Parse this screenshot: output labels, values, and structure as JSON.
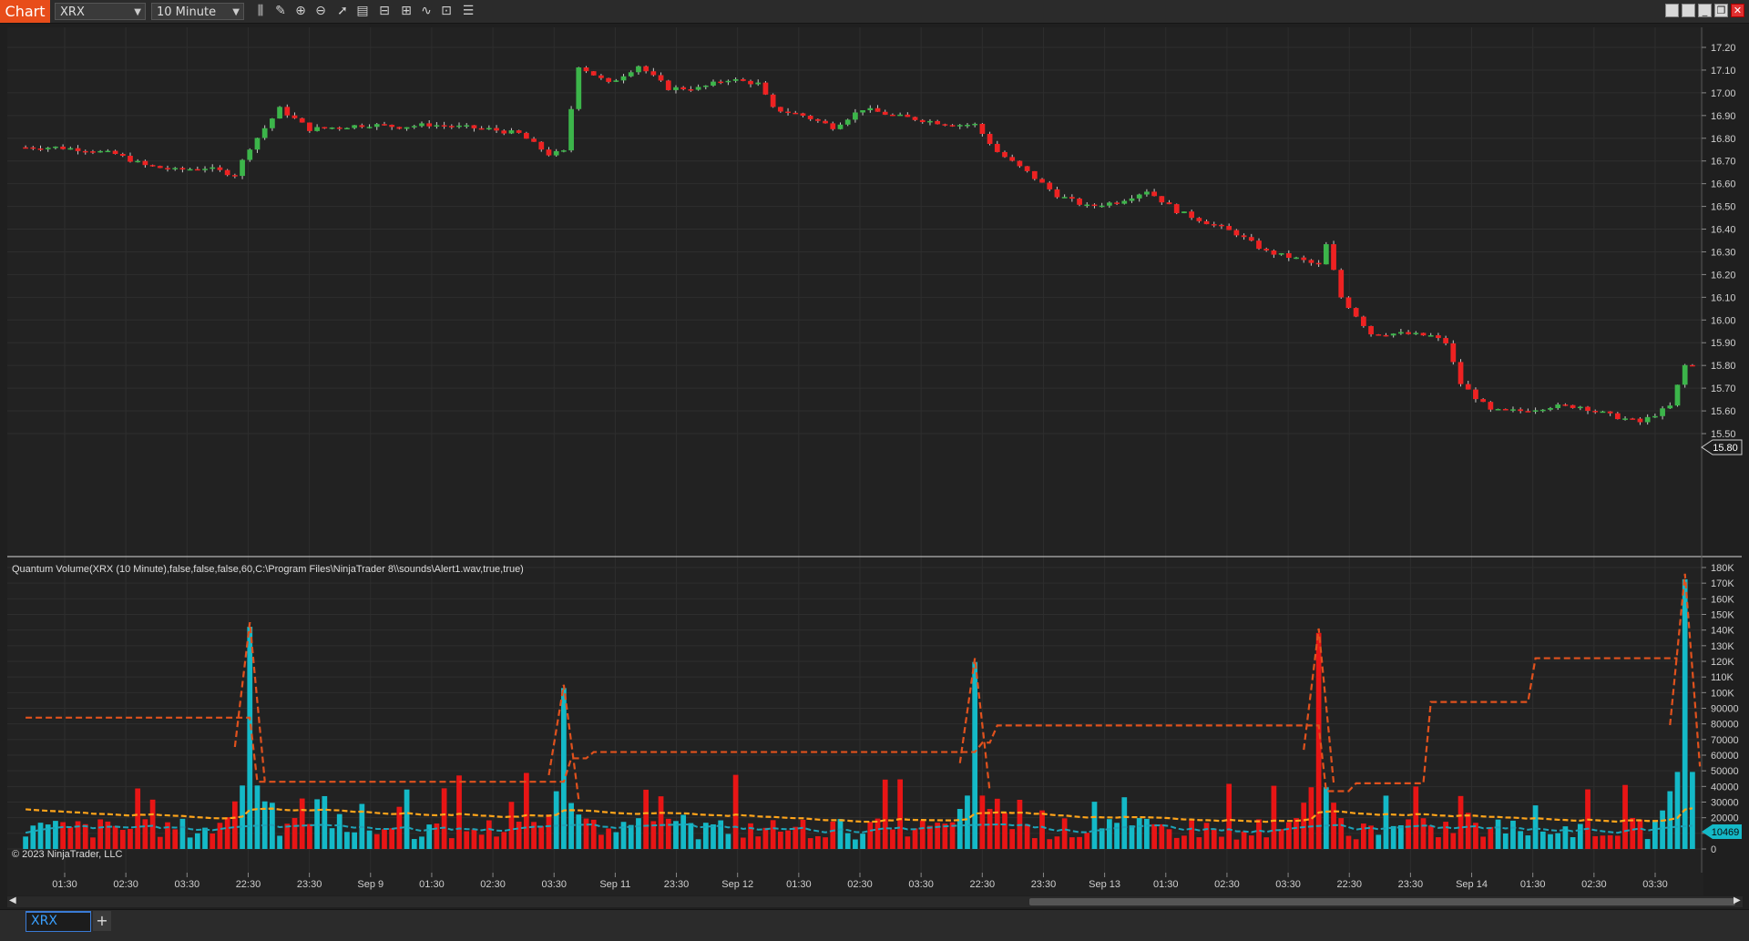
{
  "toolbar": {
    "chart_label": "Chart",
    "instrument": "XRX",
    "interval": "10 Minute"
  },
  "price_axis": {
    "ticks": [
      "17.20",
      "17.10",
      "17.00",
      "16.90",
      "16.80",
      "16.70",
      "16.60",
      "16.50",
      "16.40",
      "16.30",
      "16.20",
      "16.10",
      "16.00",
      "15.90",
      "15.80",
      "15.70",
      "15.60",
      "15.50"
    ],
    "last_price": "15.80"
  },
  "indicator": {
    "title": "Quantum Volume(XRX (10 Minute),false,false,false,60,C:\\Program Files\\NinjaTrader 8\\\\sounds\\Alert1.wav,true,true)",
    "ticks": [
      "180K",
      "170K",
      "160K",
      "150K",
      "140K",
      "130K",
      "120K",
      "110K",
      "100K",
      "90000",
      "80000",
      "70000",
      "60000",
      "50000",
      "40000",
      "30000",
      "20000",
      "10000",
      "0"
    ],
    "last_volume": "10469"
  },
  "time_axis": {
    "labels": [
      "01:30",
      "02:30",
      "03:30",
      "22:30",
      "23:30",
      "Sep 9",
      "01:30",
      "02:30",
      "03:30",
      "Sep 11",
      "23:30",
      "Sep 12",
      "01:30",
      "02:30",
      "03:30",
      "22:30",
      "23:30",
      "Sep 13",
      "01:30",
      "02:30",
      "03:30",
      "22:30",
      "23:30",
      "Sep 14",
      "01:30",
      "02:30",
      "03:30"
    ]
  },
  "copyright": "© 2023 NinjaTrader, LLC",
  "tabs": {
    "active": "XRX",
    "add": "+"
  },
  "colors": {
    "up": "#3cb54a",
    "down": "#ee2222",
    "volume_up": "#14b9c7",
    "volume_down": "#e81515",
    "dash_high": "#e0511d",
    "dash_avg": "#ffa41a",
    "dash_low": "#1ea3b8"
  },
  "chart_data": {
    "type": "candlestick",
    "x": [
      "01:30",
      "02:30",
      "03:30",
      "22:30",
      "23:30",
      "Sep 9",
      "01:30",
      "02:30",
      "03:30",
      "Sep 11",
      "23:30",
      "Sep 12",
      "01:30",
      "02:30",
      "03:30",
      "22:30",
      "23:30",
      "Sep 13",
      "01:30",
      "02:30",
      "03:30",
      "22:30",
      "23:30",
      "Sep 14",
      "01:30",
      "02:30",
      "03:30"
    ],
    "close_path": [
      [
        0,
        16.76
      ],
      [
        4,
        16.76
      ],
      [
        8,
        16.75
      ],
      [
        12,
        16.73
      ],
      [
        16,
        16.68
      ],
      [
        20,
        16.66
      ],
      [
        24,
        16.67
      ],
      [
        28,
        16.64
      ],
      [
        30,
        16.76
      ],
      [
        34,
        16.93
      ],
      [
        38,
        16.84
      ],
      [
        42,
        16.85
      ],
      [
        46,
        16.86
      ],
      [
        50,
        16.85
      ],
      [
        54,
        16.86
      ],
      [
        58,
        16.85
      ],
      [
        62,
        16.84
      ],
      [
        66,
        16.82
      ],
      [
        70,
        16.73
      ],
      [
        72,
        16.74
      ],
      [
        74,
        17.12
      ],
      [
        78,
        17.04
      ],
      [
        82,
        17.12
      ],
      [
        86,
        17.02
      ],
      [
        90,
        17.02
      ],
      [
        94,
        17.06
      ],
      [
        98,
        17.04
      ],
      [
        100,
        16.93
      ],
      [
        104,
        16.9
      ],
      [
        108,
        16.85
      ],
      [
        112,
        16.93
      ],
      [
        116,
        16.9
      ],
      [
        120,
        16.88
      ],
      [
        124,
        16.86
      ],
      [
        127,
        16.86
      ],
      [
        130,
        16.74
      ],
      [
        134,
        16.65
      ],
      [
        138,
        16.55
      ],
      [
        142,
        16.5
      ],
      [
        146,
        16.52
      ],
      [
        150,
        16.57
      ],
      [
        154,
        16.48
      ],
      [
        158,
        16.43
      ],
      [
        162,
        16.38
      ],
      [
        166,
        16.3
      ],
      [
        170,
        16.27
      ],
      [
        173,
        16.24
      ],
      [
        174,
        16.33
      ],
      [
        176,
        16.1
      ],
      [
        180,
        15.94
      ],
      [
        184,
        15.94
      ],
      [
        188,
        15.93
      ],
      [
        190,
        15.9
      ],
      [
        192,
        15.72
      ],
      [
        196,
        15.6
      ],
      [
        200,
        15.6
      ],
      [
        204,
        15.62
      ],
      [
        208,
        15.62
      ],
      [
        212,
        15.58
      ],
      [
        216,
        15.55
      ],
      [
        220,
        15.62
      ],
      [
        222,
        15.8
      ]
    ],
    "volume_peaks": [
      {
        "bar": 30,
        "value": 145000
      },
      {
        "bar": 72,
        "value": 105000
      },
      {
        "bar": 127,
        "value": 122000
      },
      {
        "bar": 173,
        "value": 141000
      },
      {
        "bar": 222,
        "value": 176000
      }
    ],
    "y_range_price": [
      15.45,
      17.25
    ],
    "y_range_volume": [
      0,
      180000
    ]
  }
}
